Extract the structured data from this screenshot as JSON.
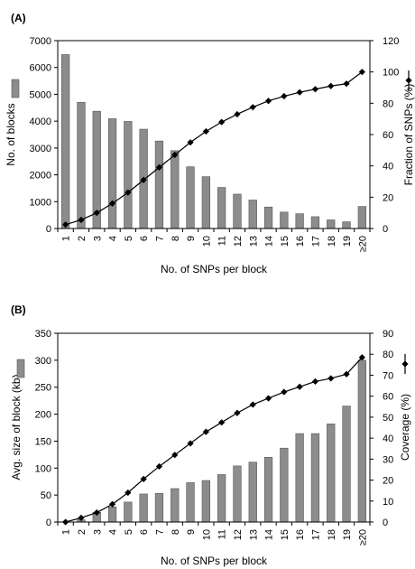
{
  "chart_data": [
    {
      "type": "bar",
      "panel_label": "(A)",
      "categories": [
        "1",
        "2",
        "3",
        "4",
        "5",
        "6",
        "7",
        "8",
        "9",
        "10",
        "11",
        "12",
        "13",
        "14",
        "15",
        "16",
        "17",
        "18",
        "19",
        "≥20"
      ],
      "xlabel": "No. of SNPs per block",
      "ylabel": "No. of blocks",
      "y2label": "Fraction of SNPs (%)",
      "ylim": [
        0,
        7000
      ],
      "y2lim": [
        0,
        120
      ],
      "yticks": [
        0,
        1000,
        2000,
        3000,
        4000,
        5000,
        6000,
        7000
      ],
      "y2ticks": [
        0,
        20,
        40,
        60,
        80,
        100,
        120
      ],
      "series": [
        {
          "kind": "bar",
          "axis": "left",
          "color": "#8c8c8c",
          "values": [
            6480,
            4700,
            4370,
            4090,
            3990,
            3700,
            3260,
            2900,
            2300,
            1930,
            1530,
            1280,
            1060,
            800,
            610,
            550,
            440,
            320,
            250,
            820
          ]
        },
        {
          "kind": "line",
          "axis": "right",
          "color": "#000000",
          "marker": "diamond",
          "values": [
            2.5,
            5.5,
            10,
            16,
            23,
            31,
            39,
            47,
            55,
            62,
            68,
            73,
            77.5,
            81.5,
            84.5,
            87,
            89,
            91,
            92.5,
            100
          ]
        }
      ]
    },
    {
      "type": "bar",
      "panel_label": "(B)",
      "categories": [
        "1",
        "2",
        "3",
        "4",
        "5",
        "6",
        "7",
        "8",
        "9",
        "10",
        "11",
        "12",
        "13",
        "14",
        "15",
        "16",
        "17",
        "18",
        "19",
        "≥20"
      ],
      "xlabel": "No. of SNPs per block",
      "ylabel": "Avg. size of block (kb)",
      "y2label": "Coverage (%)",
      "ylim": [
        0,
        350
      ],
      "y2lim": [
        0,
        90
      ],
      "yticks": [
        0,
        50,
        100,
        150,
        200,
        250,
        300,
        350
      ],
      "y2ticks": [
        0,
        10,
        20,
        30,
        40,
        50,
        60,
        70,
        80,
        90
      ],
      "series": [
        {
          "kind": "bar",
          "axis": "left",
          "color": "#8c8c8c",
          "values": [
            0,
            4,
            18,
            28,
            37,
            52,
            53,
            62,
            73,
            77,
            88,
            104,
            111,
            120,
            137,
            164,
            164,
            182,
            215,
            300
          ]
        },
        {
          "kind": "line",
          "axis": "right",
          "color": "#000000",
          "marker": "diamond",
          "values": [
            0,
            2,
            4.5,
            8.5,
            14,
            20.5,
            26.5,
            32,
            37.5,
            43,
            47.5,
            52,
            56,
            59,
            62,
            64.5,
            67,
            68.5,
            70.5,
            78.5
          ]
        }
      ]
    }
  ]
}
